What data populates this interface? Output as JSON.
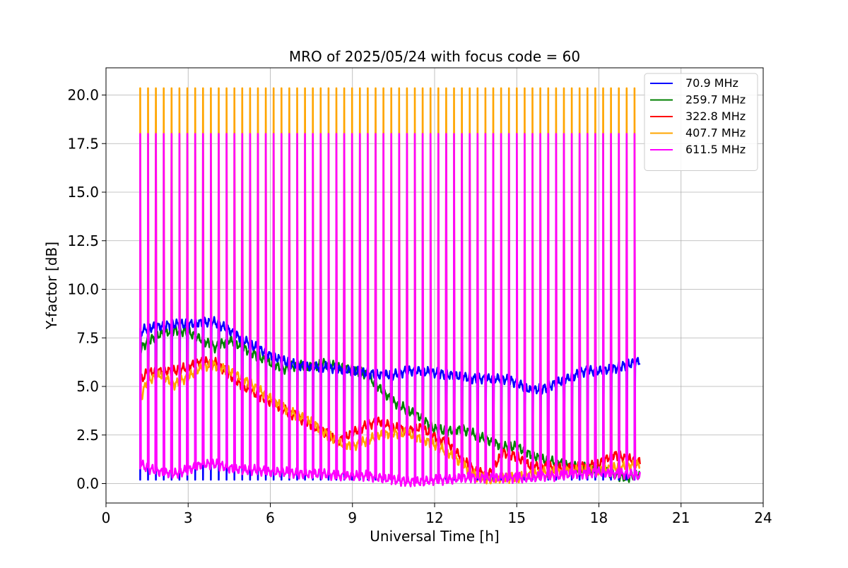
{
  "chart_data": {
    "type": "line",
    "title": "MRO of 2025/05/24 with focus code = 60",
    "xlabel": "Universal Time [h]",
    "ylabel": "Y-factor [dB]",
    "xlim": [
      0,
      24
    ],
    "ylim": [
      -1.0,
      21.4
    ],
    "x_ticks": [
      0,
      3,
      6,
      9,
      12,
      15,
      18,
      21,
      24
    ],
    "x_tick_labels": [
      "0",
      "3",
      "6",
      "9",
      "12",
      "15",
      "18",
      "21",
      "24"
    ],
    "y_ticks": [
      0,
      2.5,
      5,
      7.5,
      10,
      12.5,
      15,
      17.5,
      20
    ],
    "y_tick_labels": [
      "0.0",
      "2.5",
      "5.0",
      "7.5",
      "10.0",
      "12.5",
      "15.0",
      "17.5",
      "20.0"
    ],
    "grid": true,
    "legend_position": "top-right",
    "spikes": {
      "start": 1.25,
      "end": 19.3,
      "count": 64,
      "series_peaks": {
        "407.7 MHz": 20.35,
        "611.5 MHz": 18.0
      },
      "series_floors": {
        "70.9 MHz": 0.2
      }
    },
    "series": [
      {
        "name": "70.9 MHz",
        "color": "#0000ff",
        "x": [
          1.25,
          1.5,
          2,
          2.5,
          3,
          3.5,
          4,
          4.5,
          5,
          5.5,
          6,
          6.5,
          7,
          7.5,
          8,
          8.5,
          9,
          9.5,
          10,
          10.5,
          11,
          11.5,
          12,
          12.5,
          13,
          13.5,
          14,
          14.5,
          15,
          15.5,
          16,
          16.5,
          17,
          17.5,
          18,
          18.5,
          19,
          19.5
        ],
        "values": [
          7.8,
          8.0,
          8.1,
          8.2,
          8.2,
          8.3,
          8.3,
          7.9,
          7.4,
          7.0,
          6.6,
          6.3,
          6.1,
          6.0,
          6.0,
          5.9,
          5.8,
          5.7,
          5.6,
          5.6,
          5.8,
          5.8,
          5.7,
          5.6,
          5.5,
          5.4,
          5.4,
          5.4,
          5.2,
          4.8,
          4.9,
          5.2,
          5.5,
          5.8,
          5.8,
          5.9,
          6.1,
          6.3
        ]
      },
      {
        "name": "259.7 MHz",
        "color": "#008000",
        "x": [
          1.25,
          1.5,
          2,
          2.5,
          3,
          3.5,
          4,
          4.5,
          5,
          5.5,
          6,
          6.5,
          7,
          7.5,
          8,
          8.5,
          9,
          9.5,
          10,
          10.5,
          11,
          11.5,
          12,
          12.5,
          13,
          13.5,
          14,
          14.5,
          15,
          15.5,
          16,
          16.5,
          17,
          17.5,
          18,
          18.5,
          19,
          19.5
        ],
        "values": [
          6.9,
          7.3,
          7.7,
          7.9,
          7.8,
          7.4,
          7.0,
          7.4,
          7.0,
          6.6,
          6.2,
          5.9,
          6.1,
          6.0,
          6.2,
          6.0,
          5.9,
          5.6,
          4.9,
          4.2,
          3.8,
          3.4,
          2.8,
          2.7,
          2.8,
          2.5,
          2.2,
          1.9,
          1.9,
          1.5,
          1.2,
          1.1,
          0.9,
          0.8,
          0.8,
          0.5,
          0.3,
          0.5
        ]
      },
      {
        "name": "322.8 MHz",
        "color": "#ff0000",
        "x": [
          1.25,
          1.5,
          2,
          2.5,
          3,
          3.5,
          4,
          4.5,
          5,
          5.5,
          6,
          6.5,
          7,
          7.5,
          8,
          8.5,
          9,
          9.5,
          10,
          10.5,
          11,
          11.5,
          12,
          12.5,
          13,
          13.5,
          14,
          14.5,
          15,
          15.5,
          16,
          16.5,
          17,
          17.5,
          18,
          18.5,
          19,
          19.5
        ],
        "values": [
          5.3,
          5.7,
          5.8,
          5.8,
          6.0,
          6.3,
          6.2,
          5.6,
          5.0,
          4.6,
          4.2,
          3.8,
          3.4,
          3.0,
          2.6,
          2.2,
          2.6,
          3.0,
          3.2,
          2.9,
          2.7,
          2.9,
          2.4,
          2.1,
          1.3,
          0.6,
          0.5,
          1.6,
          1.4,
          0.9,
          0.9,
          0.8,
          0.8,
          0.9,
          1.0,
          1.5,
          1.3,
          1.1
        ]
      },
      {
        "name": "407.7 MHz",
        "color": "#ffa500",
        "x": [
          1.25,
          1.5,
          2,
          2.5,
          3,
          3.5,
          4,
          4.5,
          5,
          5.5,
          6,
          6.5,
          7,
          7.5,
          8,
          8.5,
          9,
          9.5,
          10,
          10.5,
          11,
          11.5,
          12,
          12.5,
          13,
          13.5,
          14,
          14.5,
          15,
          15.5,
          16,
          16.5,
          17,
          17.5,
          18,
          18.5,
          19,
          19.5
        ],
        "values": [
          4.3,
          5.3,
          5.6,
          5.1,
          5.5,
          6.0,
          6.1,
          5.8,
          5.4,
          4.9,
          4.4,
          3.9,
          3.5,
          3.2,
          2.6,
          2.1,
          1.9,
          2.2,
          2.5,
          2.6,
          2.6,
          2.3,
          2.0,
          1.6,
          1.0,
          0.4,
          0.2,
          0.3,
          0.3,
          0.5,
          0.6,
          0.6,
          0.7,
          0.7,
          0.7,
          0.8,
          0.9,
          1.0
        ]
      },
      {
        "name": "611.5 MHz",
        "color": "#ff00ff",
        "x": [
          1.25,
          1.5,
          2,
          2.5,
          3,
          3.5,
          4,
          4.5,
          5,
          5.5,
          6,
          6.5,
          7,
          7.5,
          8,
          8.5,
          9,
          9.5,
          10,
          10.5,
          11,
          11.5,
          12,
          12.5,
          13,
          13.5,
          14,
          14.5,
          15,
          15.5,
          16,
          16.5,
          17,
          17.5,
          18,
          18.5,
          19,
          19.5
        ],
        "values": [
          1.0,
          0.8,
          0.6,
          0.5,
          0.7,
          1.0,
          1.0,
          0.8,
          0.7,
          0.7,
          0.6,
          0.6,
          0.5,
          0.5,
          0.5,
          0.4,
          0.4,
          0.4,
          0.3,
          0.2,
          0.1,
          0.1,
          0.2,
          0.2,
          0.3,
          0.3,
          0.3,
          0.3,
          0.3,
          0.3,
          0.4,
          0.4,
          0.5,
          0.5,
          0.6,
          0.5,
          0.5,
          0.4
        ]
      }
    ]
  }
}
